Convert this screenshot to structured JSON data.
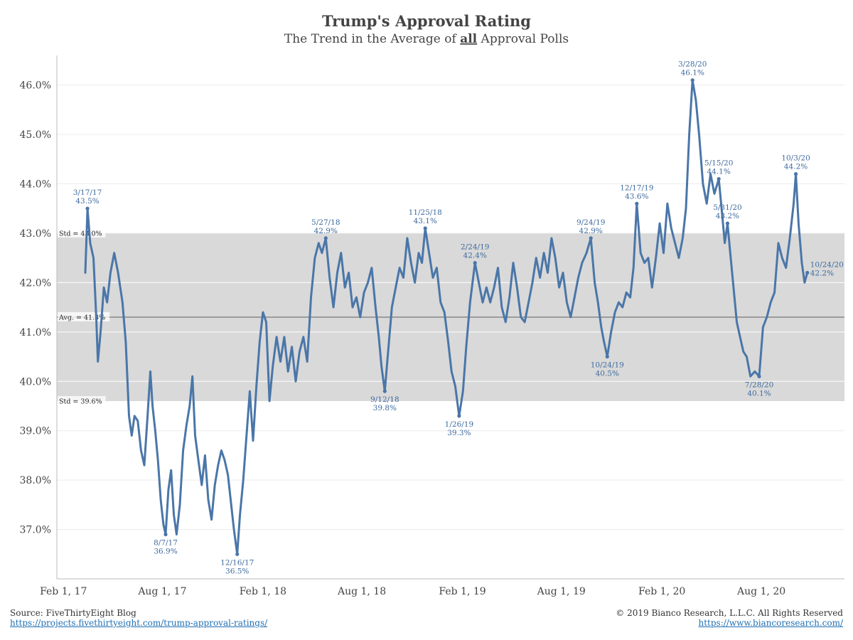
{
  "chart_data": {
    "type": "line",
    "title": "Trump's Approval Rating",
    "subtitle_parts": [
      "The Trend in the Average of ",
      "all",
      " Approval Polls"
    ],
    "x_ticks": [
      "Feb 1, 17",
      "Aug 1, 17",
      "Feb 1, 18",
      "Aug 1, 18",
      "Feb 1, 19",
      "Aug 1, 19",
      "Feb 1, 20",
      "Aug 1, 20"
    ],
    "x_tick_dates": [
      "2017-02-01",
      "2017-08-01",
      "2018-02-01",
      "2018-08-01",
      "2019-02-01",
      "2019-08-01",
      "2020-02-01",
      "2020-08-01"
    ],
    "y_ticks": [
      "37.0%",
      "38.0%",
      "39.0%",
      "40.0%",
      "41.0%",
      "42.0%",
      "43.0%",
      "44.0%",
      "45.0%",
      "46.0%"
    ],
    "y_tick_values": [
      37,
      38,
      39,
      40,
      41,
      42,
      43,
      44,
      45,
      46
    ],
    "xlim": [
      "2017-01-20",
      "2020-12-31"
    ],
    "ylim": [
      36.0,
      46.6
    ],
    "grid": true,
    "line_color": "#4a76a8",
    "band_color": "#d9d9d9",
    "band": {
      "low": 39.6,
      "high": 43.0,
      "low_label": "Std = 39.6%",
      "high_label": "Std = 43.0%"
    },
    "average": {
      "value": 41.3,
      "label": "Avg. = 41.3%"
    },
    "series": [
      {
        "points": [
          [
            "2017-03-13",
            42.2
          ],
          [
            "2017-03-17",
            43.5
          ],
          [
            "2017-03-22",
            42.8
          ],
          [
            "2017-03-28",
            42.5
          ],
          [
            "2017-04-02",
            41.3
          ],
          [
            "2017-04-05",
            40.4
          ],
          [
            "2017-04-10",
            41.0
          ],
          [
            "2017-04-16",
            41.9
          ],
          [
            "2017-04-22",
            41.6
          ],
          [
            "2017-04-28",
            42.2
          ],
          [
            "2017-05-05",
            42.6
          ],
          [
            "2017-05-12",
            42.2
          ],
          [
            "2017-05-20",
            41.6
          ],
          [
            "2017-05-26",
            40.8
          ],
          [
            "2017-06-01",
            39.3
          ],
          [
            "2017-06-06",
            38.9
          ],
          [
            "2017-06-11",
            39.3
          ],
          [
            "2017-06-17",
            39.2
          ],
          [
            "2017-06-23",
            38.6
          ],
          [
            "2017-06-29",
            38.3
          ],
          [
            "2017-07-05",
            39.3
          ],
          [
            "2017-07-10",
            40.2
          ],
          [
            "2017-07-14",
            39.5
          ],
          [
            "2017-07-19",
            39.0
          ],
          [
            "2017-07-24",
            38.4
          ],
          [
            "2017-07-29",
            37.6
          ],
          [
            "2017-08-03",
            37.1
          ],
          [
            "2017-08-07",
            36.9
          ],
          [
            "2017-08-12",
            37.8
          ],
          [
            "2017-08-17",
            38.2
          ],
          [
            "2017-08-22",
            37.3
          ],
          [
            "2017-08-27",
            36.9
          ],
          [
            "2017-09-02",
            37.5
          ],
          [
            "2017-09-08",
            38.6
          ],
          [
            "2017-09-14",
            39.1
          ],
          [
            "2017-09-20",
            39.5
          ],
          [
            "2017-09-25",
            40.1
          ],
          [
            "2017-09-30",
            38.9
          ],
          [
            "2017-10-06",
            38.4
          ],
          [
            "2017-10-12",
            37.9
          ],
          [
            "2017-10-18",
            38.5
          ],
          [
            "2017-10-24",
            37.6
          ],
          [
            "2017-10-30",
            37.2
          ],
          [
            "2017-11-05",
            37.9
          ],
          [
            "2017-11-11",
            38.3
          ],
          [
            "2017-11-17",
            38.6
          ],
          [
            "2017-11-23",
            38.4
          ],
          [
            "2017-11-29",
            38.1
          ],
          [
            "2017-12-04",
            37.6
          ],
          [
            "2017-12-10",
            37.0
          ],
          [
            "2017-12-16",
            36.5
          ],
          [
            "2017-12-21",
            37.3
          ],
          [
            "2017-12-27",
            38.0
          ],
          [
            "2018-01-02",
            38.9
          ],
          [
            "2018-01-08",
            39.8
          ],
          [
            "2018-01-14",
            38.8
          ],
          [
            "2018-01-20",
            39.9
          ],
          [
            "2018-01-26",
            40.8
          ],
          [
            "2018-02-01",
            41.4
          ],
          [
            "2018-02-07",
            41.2
          ],
          [
            "2018-02-13",
            39.6
          ],
          [
            "2018-02-19",
            40.3
          ],
          [
            "2018-02-26",
            40.9
          ],
          [
            "2018-03-05",
            40.4
          ],
          [
            "2018-03-12",
            40.9
          ],
          [
            "2018-03-19",
            40.2
          ],
          [
            "2018-03-26",
            40.7
          ],
          [
            "2018-04-02",
            40.0
          ],
          [
            "2018-04-09",
            40.6
          ],
          [
            "2018-04-16",
            40.9
          ],
          [
            "2018-04-23",
            40.4
          ],
          [
            "2018-04-30",
            41.7
          ],
          [
            "2018-05-07",
            42.5
          ],
          [
            "2018-05-14",
            42.8
          ],
          [
            "2018-05-20",
            42.6
          ],
          [
            "2018-05-27",
            42.9
          ],
          [
            "2018-06-03",
            42.1
          ],
          [
            "2018-06-10",
            41.5
          ],
          [
            "2018-06-17",
            42.2
          ],
          [
            "2018-06-24",
            42.6
          ],
          [
            "2018-07-01",
            41.9
          ],
          [
            "2018-07-08",
            42.2
          ],
          [
            "2018-07-15",
            41.5
          ],
          [
            "2018-07-22",
            41.7
          ],
          [
            "2018-07-29",
            41.3
          ],
          [
            "2018-08-05",
            41.8
          ],
          [
            "2018-08-12",
            42.0
          ],
          [
            "2018-08-19",
            42.3
          ],
          [
            "2018-08-26",
            41.5
          ],
          [
            "2018-09-01",
            40.9
          ],
          [
            "2018-09-06",
            40.3
          ],
          [
            "2018-09-12",
            39.8
          ],
          [
            "2018-09-18",
            40.6
          ],
          [
            "2018-09-25",
            41.5
          ],
          [
            "2018-10-02",
            41.9
          ],
          [
            "2018-10-09",
            42.3
          ],
          [
            "2018-10-16",
            42.1
          ],
          [
            "2018-10-23",
            42.9
          ],
          [
            "2018-10-30",
            42.4
          ],
          [
            "2018-11-06",
            42.0
          ],
          [
            "2018-11-13",
            42.6
          ],
          [
            "2018-11-19",
            42.4
          ],
          [
            "2018-11-25",
            43.1
          ],
          [
            "2018-12-02",
            42.6
          ],
          [
            "2018-12-09",
            42.1
          ],
          [
            "2018-12-16",
            42.3
          ],
          [
            "2018-12-23",
            41.6
          ],
          [
            "2018-12-30",
            41.4
          ],
          [
            "2019-01-06",
            40.8
          ],
          [
            "2019-01-12",
            40.2
          ],
          [
            "2019-01-19",
            39.9
          ],
          [
            "2019-01-26",
            39.3
          ],
          [
            "2019-02-02",
            39.8
          ],
          [
            "2019-02-08",
            40.7
          ],
          [
            "2019-02-15",
            41.6
          ],
          [
            "2019-02-24",
            42.4
          ],
          [
            "2019-03-03",
            42.0
          ],
          [
            "2019-03-10",
            41.6
          ],
          [
            "2019-03-17",
            41.9
          ],
          [
            "2019-03-24",
            41.6
          ],
          [
            "2019-03-31",
            41.9
          ],
          [
            "2019-04-07",
            42.3
          ],
          [
            "2019-04-14",
            41.5
          ],
          [
            "2019-04-21",
            41.2
          ],
          [
            "2019-04-28",
            41.7
          ],
          [
            "2019-05-05",
            42.4
          ],
          [
            "2019-05-12",
            41.9
          ],
          [
            "2019-05-19",
            41.3
          ],
          [
            "2019-05-26",
            41.2
          ],
          [
            "2019-06-02",
            41.6
          ],
          [
            "2019-06-09",
            42.0
          ],
          [
            "2019-06-16",
            42.5
          ],
          [
            "2019-06-23",
            42.1
          ],
          [
            "2019-06-30",
            42.6
          ],
          [
            "2019-07-07",
            42.2
          ],
          [
            "2019-07-14",
            42.9
          ],
          [
            "2019-07-21",
            42.5
          ],
          [
            "2019-07-28",
            41.9
          ],
          [
            "2019-08-04",
            42.2
          ],
          [
            "2019-08-11",
            41.6
          ],
          [
            "2019-08-18",
            41.3
          ],
          [
            "2019-08-25",
            41.7
          ],
          [
            "2019-09-01",
            42.1
          ],
          [
            "2019-09-08",
            42.4
          ],
          [
            "2019-09-16",
            42.6
          ],
          [
            "2019-09-24",
            42.9
          ],
          [
            "2019-10-01",
            42.0
          ],
          [
            "2019-10-07",
            41.6
          ],
          [
            "2019-10-13",
            41.1
          ],
          [
            "2019-10-18",
            40.8
          ],
          [
            "2019-10-24",
            40.5
          ],
          [
            "2019-10-31",
            41.0
          ],
          [
            "2019-11-07",
            41.4
          ],
          [
            "2019-11-14",
            41.6
          ],
          [
            "2019-11-21",
            41.5
          ],
          [
            "2019-11-28",
            41.8
          ],
          [
            "2019-12-05",
            41.7
          ],
          [
            "2019-12-11",
            42.3
          ],
          [
            "2019-12-17",
            43.6
          ],
          [
            "2019-12-24",
            42.6
          ],
          [
            "2019-12-31",
            42.4
          ],
          [
            "2020-01-07",
            42.5
          ],
          [
            "2020-01-14",
            41.9
          ],
          [
            "2020-01-21",
            42.5
          ],
          [
            "2020-01-28",
            43.2
          ],
          [
            "2020-02-04",
            42.6
          ],
          [
            "2020-02-11",
            43.6
          ],
          [
            "2020-02-18",
            43.1
          ],
          [
            "2020-02-25",
            42.8
          ],
          [
            "2020-03-03",
            42.5
          ],
          [
            "2020-03-10",
            42.9
          ],
          [
            "2020-03-16",
            43.5
          ],
          [
            "2020-03-22",
            45.0
          ],
          [
            "2020-03-28",
            46.1
          ],
          [
            "2020-04-03",
            45.7
          ],
          [
            "2020-04-09",
            45.0
          ],
          [
            "2020-04-16",
            44.0
          ],
          [
            "2020-04-23",
            43.6
          ],
          [
            "2020-04-30",
            44.2
          ],
          [
            "2020-05-07",
            43.8
          ],
          [
            "2020-05-15",
            44.1
          ],
          [
            "2020-05-21",
            43.4
          ],
          [
            "2020-05-26",
            42.8
          ],
          [
            "2020-05-31",
            43.2
          ],
          [
            "2020-06-05",
            42.6
          ],
          [
            "2020-06-11",
            41.9
          ],
          [
            "2020-06-17",
            41.2
          ],
          [
            "2020-06-23",
            40.9
          ],
          [
            "2020-06-29",
            40.6
          ],
          [
            "2020-07-05",
            40.5
          ],
          [
            "2020-07-12",
            40.1
          ],
          [
            "2020-07-20",
            40.2
          ],
          [
            "2020-07-28",
            40.1
          ],
          [
            "2020-08-04",
            41.1
          ],
          [
            "2020-08-11",
            41.3
          ],
          [
            "2020-08-18",
            41.6
          ],
          [
            "2020-08-25",
            41.8
          ],
          [
            "2020-09-01",
            42.8
          ],
          [
            "2020-09-08",
            42.5
          ],
          [
            "2020-09-15",
            42.3
          ],
          [
            "2020-09-22",
            42.9
          ],
          [
            "2020-09-29",
            43.6
          ],
          [
            "2020-10-03",
            44.2
          ],
          [
            "2020-10-08",
            43.2
          ],
          [
            "2020-10-14",
            42.4
          ],
          [
            "2020-10-19",
            42.0
          ],
          [
            "2020-10-24",
            42.2
          ]
        ]
      }
    ],
    "annotations": [
      {
        "date": "2017-03-17",
        "value": 43.5,
        "label_date": "3/17/17",
        "label_value": "43.5%",
        "pos": "above"
      },
      {
        "date": "2017-08-07",
        "value": 36.9,
        "label_date": "8/7/17",
        "label_value": "36.9%",
        "pos": "below"
      },
      {
        "date": "2017-12-16",
        "value": 36.5,
        "label_date": "12/16/17",
        "label_value": "36.5%",
        "pos": "below"
      },
      {
        "date": "2018-05-27",
        "value": 42.9,
        "label_date": "5/27/18",
        "label_value": "42.9%",
        "pos": "above"
      },
      {
        "date": "2018-09-12",
        "value": 39.8,
        "label_date": "9/12/18",
        "label_value": "39.8%",
        "pos": "below"
      },
      {
        "date": "2018-11-25",
        "value": 43.1,
        "label_date": "11/25/18",
        "label_value": "43.1%",
        "pos": "above"
      },
      {
        "date": "2019-01-26",
        "value": 39.3,
        "label_date": "1/26/19",
        "label_value": "39.3%",
        "pos": "below"
      },
      {
        "date": "2019-02-24",
        "value": 42.4,
        "label_date": "2/24/19",
        "label_value": "42.4%",
        "pos": "above"
      },
      {
        "date": "2019-09-24",
        "value": 42.9,
        "label_date": "9/24/19",
        "label_value": "42.9%",
        "pos": "above"
      },
      {
        "date": "2019-10-24",
        "value": 40.5,
        "label_date": "10/24/19",
        "label_value": "40.5%",
        "pos": "below"
      },
      {
        "date": "2019-12-17",
        "value": 43.6,
        "label_date": "12/17/19",
        "label_value": "43.6%",
        "pos": "above"
      },
      {
        "date": "2020-03-28",
        "value": 46.1,
        "label_date": "3/28/20",
        "label_value": "46.1%",
        "pos": "above"
      },
      {
        "date": "2020-05-15",
        "value": 44.1,
        "label_date": "5/15/20",
        "label_value": "44.1%",
        "pos": "above"
      },
      {
        "date": "2020-05-31",
        "value": 43.2,
        "label_date": "5/31/20",
        "label_value": "43.2%",
        "pos": "above"
      },
      {
        "date": "2020-07-28",
        "value": 40.1,
        "label_date": "7/28/20",
        "label_value": "40.1%",
        "pos": "below"
      },
      {
        "date": "2020-10-03",
        "value": 44.2,
        "label_date": "10/3/20",
        "label_value": "44.2%",
        "pos": "above"
      },
      {
        "date": "2020-10-24",
        "value": 42.2,
        "label_date": "10/24/20",
        "label_value": "42.2%",
        "pos": "right"
      }
    ]
  },
  "footer": {
    "source_label": "Source: FiveThirtyEight Blog",
    "source_url": "https://projects.fivethirtyeight.com/trump-approval-ratings/",
    "copyright": "© 2019 Bianco Research, L.L.C. All Rights Reserved",
    "site_url": "https://www.biancoresearch.com/"
  }
}
